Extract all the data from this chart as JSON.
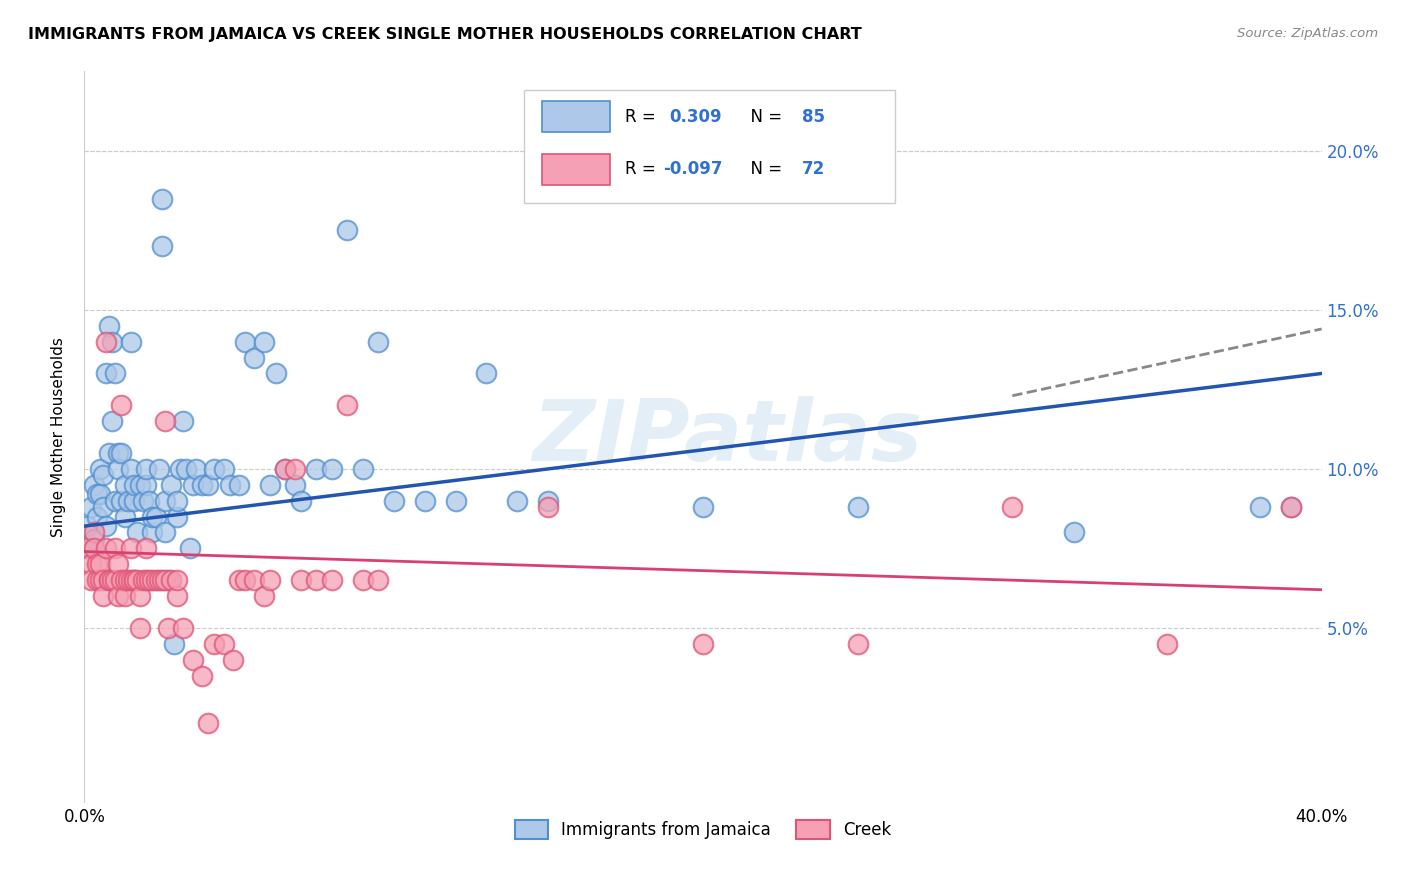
{
  "title": "IMMIGRANTS FROM JAMAICA VS CREEK SINGLE MOTHER HOUSEHOLDS CORRELATION CHART",
  "source": "Source: ZipAtlas.com",
  "ylabel": "Single Mother Households",
  "legend_label_blue": "Immigrants from Jamaica",
  "legend_label_pink": "Creek",
  "xlim": [
    0.0,
    0.4
  ],
  "ylim": [
    -0.005,
    0.225
  ],
  "xtick_left": 0.0,
  "xtick_right": 0.4,
  "yticks": [
    0.05,
    0.1,
    0.15,
    0.2
  ],
  "ytick_top": 0.2,
  "blue_color": "#adc8e8",
  "pink_color": "#f5a0b5",
  "blue_edge_color": "#5090d0",
  "pink_edge_color": "#e05575",
  "blue_line_color": "#2255b0",
  "pink_line_color": "#d84070",
  "legend_text_color": "#3070d0",
  "right_axis_color": "#3070d0",
  "watermark": "ZIPatlas",
  "blue_dots": [
    [
      0.001,
      0.082
    ],
    [
      0.002,
      0.075
    ],
    [
      0.002,
      0.088
    ],
    [
      0.003,
      0.095
    ],
    [
      0.003,
      0.078
    ],
    [
      0.004,
      0.092
    ],
    [
      0.004,
      0.085
    ],
    [
      0.005,
      0.1
    ],
    [
      0.005,
      0.092
    ],
    [
      0.006,
      0.098
    ],
    [
      0.006,
      0.088
    ],
    [
      0.007,
      0.082
    ],
    [
      0.007,
      0.13
    ],
    [
      0.008,
      0.105
    ],
    [
      0.008,
      0.145
    ],
    [
      0.009,
      0.14
    ],
    [
      0.009,
      0.115
    ],
    [
      0.01,
      0.13
    ],
    [
      0.01,
      0.09
    ],
    [
      0.011,
      0.105
    ],
    [
      0.011,
      0.1
    ],
    [
      0.012,
      0.105
    ],
    [
      0.012,
      0.09
    ],
    [
      0.013,
      0.095
    ],
    [
      0.013,
      0.085
    ],
    [
      0.014,
      0.09
    ],
    [
      0.015,
      0.1
    ],
    [
      0.015,
      0.14
    ],
    [
      0.016,
      0.09
    ],
    [
      0.016,
      0.095
    ],
    [
      0.017,
      0.08
    ],
    [
      0.018,
      0.095
    ],
    [
      0.019,
      0.09
    ],
    [
      0.02,
      0.095
    ],
    [
      0.02,
      0.1
    ],
    [
      0.021,
      0.09
    ],
    [
      0.022,
      0.08
    ],
    [
      0.022,
      0.085
    ],
    [
      0.023,
      0.085
    ],
    [
      0.024,
      0.1
    ],
    [
      0.025,
      0.185
    ],
    [
      0.025,
      0.17
    ],
    [
      0.026,
      0.09
    ],
    [
      0.026,
      0.08
    ],
    [
      0.027,
      0.065
    ],
    [
      0.028,
      0.095
    ],
    [
      0.029,
      0.045
    ],
    [
      0.03,
      0.085
    ],
    [
      0.03,
      0.09
    ],
    [
      0.031,
      0.1
    ],
    [
      0.032,
      0.115
    ],
    [
      0.033,
      0.1
    ],
    [
      0.034,
      0.075
    ],
    [
      0.035,
      0.095
    ],
    [
      0.036,
      0.1
    ],
    [
      0.038,
      0.095
    ],
    [
      0.04,
      0.095
    ],
    [
      0.042,
      0.1
    ],
    [
      0.045,
      0.1
    ],
    [
      0.047,
      0.095
    ],
    [
      0.05,
      0.095
    ],
    [
      0.052,
      0.14
    ],
    [
      0.055,
      0.135
    ],
    [
      0.058,
      0.14
    ],
    [
      0.06,
      0.095
    ],
    [
      0.062,
      0.13
    ],
    [
      0.065,
      0.1
    ],
    [
      0.068,
      0.095
    ],
    [
      0.07,
      0.09
    ],
    [
      0.075,
      0.1
    ],
    [
      0.08,
      0.1
    ],
    [
      0.085,
      0.175
    ],
    [
      0.09,
      0.1
    ],
    [
      0.095,
      0.14
    ],
    [
      0.1,
      0.09
    ],
    [
      0.11,
      0.09
    ],
    [
      0.12,
      0.09
    ],
    [
      0.13,
      0.13
    ],
    [
      0.14,
      0.09
    ],
    [
      0.15,
      0.09
    ],
    [
      0.2,
      0.088
    ],
    [
      0.25,
      0.088
    ],
    [
      0.32,
      0.08
    ],
    [
      0.38,
      0.088
    ],
    [
      0.39,
      0.088
    ]
  ],
  "pink_dots": [
    [
      0.001,
      0.075
    ],
    [
      0.002,
      0.07
    ],
    [
      0.002,
      0.065
    ],
    [
      0.003,
      0.08
    ],
    [
      0.003,
      0.075
    ],
    [
      0.004,
      0.07
    ],
    [
      0.004,
      0.065
    ],
    [
      0.005,
      0.065
    ],
    [
      0.005,
      0.07
    ],
    [
      0.006,
      0.065
    ],
    [
      0.006,
      0.06
    ],
    [
      0.007,
      0.075
    ],
    [
      0.007,
      0.14
    ],
    [
      0.008,
      0.065
    ],
    [
      0.008,
      0.065
    ],
    [
      0.009,
      0.065
    ],
    [
      0.01,
      0.075
    ],
    [
      0.01,
      0.065
    ],
    [
      0.011,
      0.07
    ],
    [
      0.011,
      0.06
    ],
    [
      0.012,
      0.12
    ],
    [
      0.012,
      0.065
    ],
    [
      0.013,
      0.06
    ],
    [
      0.013,
      0.065
    ],
    [
      0.014,
      0.065
    ],
    [
      0.015,
      0.075
    ],
    [
      0.015,
      0.065
    ],
    [
      0.016,
      0.065
    ],
    [
      0.016,
      0.065
    ],
    [
      0.017,
      0.065
    ],
    [
      0.018,
      0.06
    ],
    [
      0.018,
      0.05
    ],
    [
      0.019,
      0.065
    ],
    [
      0.02,
      0.065
    ],
    [
      0.02,
      0.075
    ],
    [
      0.021,
      0.065
    ],
    [
      0.022,
      0.065
    ],
    [
      0.023,
      0.065
    ],
    [
      0.024,
      0.065
    ],
    [
      0.025,
      0.065
    ],
    [
      0.026,
      0.115
    ],
    [
      0.026,
      0.065
    ],
    [
      0.027,
      0.05
    ],
    [
      0.028,
      0.065
    ],
    [
      0.03,
      0.06
    ],
    [
      0.03,
      0.065
    ],
    [
      0.032,
      0.05
    ],
    [
      0.035,
      0.04
    ],
    [
      0.038,
      0.035
    ],
    [
      0.04,
      0.02
    ],
    [
      0.042,
      0.045
    ],
    [
      0.045,
      0.045
    ],
    [
      0.048,
      0.04
    ],
    [
      0.05,
      0.065
    ],
    [
      0.052,
      0.065
    ],
    [
      0.055,
      0.065
    ],
    [
      0.058,
      0.06
    ],
    [
      0.06,
      0.065
    ],
    [
      0.065,
      0.1
    ],
    [
      0.068,
      0.1
    ],
    [
      0.07,
      0.065
    ],
    [
      0.075,
      0.065
    ],
    [
      0.08,
      0.065
    ],
    [
      0.085,
      0.12
    ],
    [
      0.09,
      0.065
    ],
    [
      0.095,
      0.065
    ],
    [
      0.15,
      0.088
    ],
    [
      0.2,
      0.045
    ],
    [
      0.25,
      0.045
    ],
    [
      0.3,
      0.088
    ],
    [
      0.35,
      0.045
    ],
    [
      0.39,
      0.088
    ]
  ],
  "blue_line": {
    "x": [
      0.0,
      0.4
    ],
    "y": [
      0.082,
      0.13
    ]
  },
  "blue_dashed": {
    "x": [
      0.3,
      0.4
    ],
    "y": [
      0.123,
      0.144
    ]
  },
  "pink_line": {
    "x": [
      0.0,
      0.4
    ],
    "y": [
      0.074,
      0.062
    ]
  }
}
